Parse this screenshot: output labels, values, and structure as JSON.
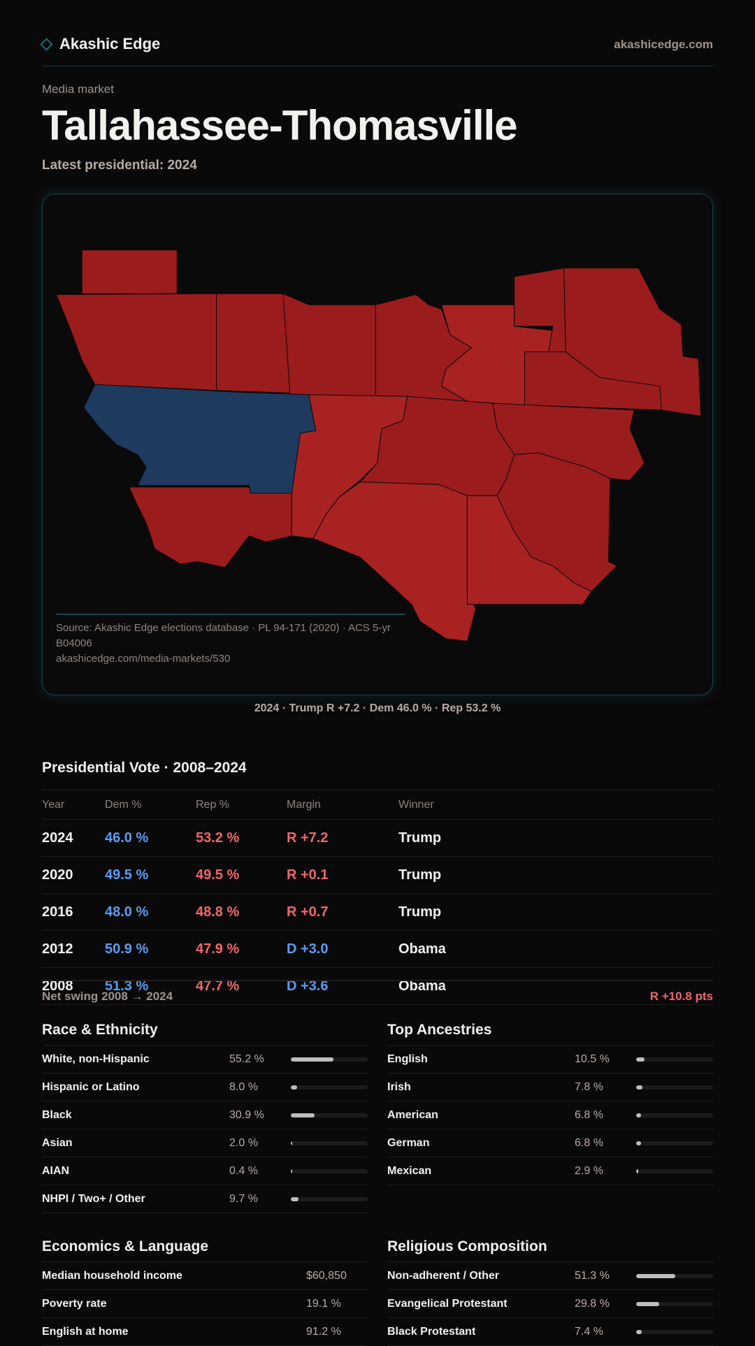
{
  "brand": {
    "name": "Akashic Edge",
    "site": "akashicedge.com"
  },
  "header": {
    "kicker": "Media market",
    "title": "Tallahassee-Thomasville",
    "subtitle": "Latest presidential: 2024"
  },
  "colors": {
    "rep": "#9b1c1c",
    "rep_light": "#a82222",
    "dem": "#1f3a5f"
  },
  "map_caption": "2024 · Trump R +7.2 · Dem 46.0 % · Rep 53.2 %",
  "presidential": {
    "title": "Presidential Vote · 2008–2024",
    "columns": [
      "Year",
      "Dem %",
      "Rep %",
      "Margin",
      "Winner"
    ],
    "rows": [
      {
        "year": "2024",
        "dem": "46.0 %",
        "rep": "53.2 %",
        "margin": "R +7.2",
        "winner": "Trump",
        "party": "rep"
      },
      {
        "year": "2020",
        "dem": "49.5 %",
        "rep": "49.5 %",
        "margin": "R +0.1",
        "winner": "Trump",
        "party": "rep"
      },
      {
        "year": "2016",
        "dem": "48.0 %",
        "rep": "48.8 %",
        "margin": "R +0.7",
        "winner": "Trump",
        "party": "rep"
      },
      {
        "year": "2012",
        "dem": "50.9 %",
        "rep": "47.9 %",
        "margin": "D +3.0",
        "winner": "Obama",
        "party": "dem"
      },
      {
        "year": "2008",
        "dem": "51.3 %",
        "rep": "47.7 %",
        "margin": "D +3.6",
        "winner": "Obama",
        "party": "dem"
      }
    ],
    "swing_label": "Net swing 2008 → 2024",
    "swing_value": "R +10.8 pts"
  },
  "race": {
    "title": "Race & Ethnicity",
    "rows": [
      {
        "label": "White, non-Hispanic",
        "value": "55.2 %",
        "pct": 55.2
      },
      {
        "label": "Hispanic or Latino",
        "value": "8.0 %",
        "pct": 8.0
      },
      {
        "label": "Black",
        "value": "30.9 %",
        "pct": 30.9
      },
      {
        "label": "Asian",
        "value": "2.0 %",
        "pct": 2.0
      },
      {
        "label": "AIAN",
        "value": "0.4 %",
        "pct": 0.4
      },
      {
        "label": "NHPI / Two+ / Other",
        "value": "9.7 %",
        "pct": 9.7
      }
    ]
  },
  "ancestry": {
    "title": "Top Ancestries",
    "rows": [
      {
        "label": "English",
        "value": "10.5 %",
        "pct": 10.5
      },
      {
        "label": "Irish",
        "value": "7.8 %",
        "pct": 7.8
      },
      {
        "label": "American",
        "value": "6.8 %",
        "pct": 6.8
      },
      {
        "label": "German",
        "value": "6.8 %",
        "pct": 6.8
      },
      {
        "label": "Mexican",
        "value": "2.9 %",
        "pct": 2.9
      }
    ]
  },
  "economics": {
    "title": "Economics & Language",
    "rows": [
      {
        "label": "Median household income",
        "value": "$60,850"
      },
      {
        "label": "Poverty rate",
        "value": "19.1 %"
      },
      {
        "label": "English at home",
        "value": "91.2 %"
      }
    ]
  },
  "religion": {
    "title": "Religious Composition",
    "rows": [
      {
        "label": "Non-adherent / Other",
        "value": "51.3 %",
        "pct": 51.3
      },
      {
        "label": "Evangelical Protestant",
        "value": "29.8 %",
        "pct": 29.8
      },
      {
        "label": "Black Protestant",
        "value": "7.4 %",
        "pct": 7.4
      }
    ]
  },
  "footer": {
    "source": "Source: Akashic Edge elections database · PL 94-171 (2020) · ACS 5-yr B04006",
    "url": "akashicedge.com/media-markets/530"
  }
}
